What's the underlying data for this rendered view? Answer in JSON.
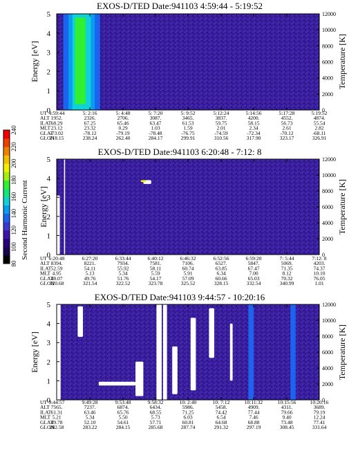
{
  "colorbar": {
    "label": "Second Harmonic Current",
    "ticks": [
      "80",
      "100",
      "120",
      "140",
      "160",
      "180",
      "200",
      "220",
      "240"
    ],
    "colors": [
      "#000000",
      "#1a0050",
      "#2a007a",
      "#3c14a6",
      "#3a3ad0",
      "#1a64f0",
      "#0a9cf0",
      "#10d0d8",
      "#10e87a",
      "#30f030",
      "#a0f010",
      "#f0f000",
      "#f0c000",
      "#f08000",
      "#f04000",
      "#f00000"
    ]
  },
  "chart_data": [
    {
      "type": "heatmap",
      "title": "EXOS-D/TED   Date:941103  4:59:44 - 5:19:52",
      "ylabel": "Energy [eV]",
      "y2label": "Temperature [K]",
      "ylim": [
        0,
        5
      ],
      "y2lim": [
        0,
        12000
      ],
      "yticks": [
        "0",
        "1",
        "2",
        "3",
        "4",
        "5"
      ],
      "y2ticks": [
        "0",
        "2000",
        "4000",
        "6000",
        "8000",
        "10000",
        "12000"
      ],
      "background_color": "#3a1f9e",
      "features": [
        {
          "x_start": 0.025,
          "x_end": 0.165,
          "y_start": 0.0,
          "y_end": 5.0,
          "color": "#1a64f0"
        },
        {
          "x_start": 0.045,
          "x_end": 0.145,
          "y_start": 0.0,
          "y_end": 5.0,
          "color": "#0a9cf0"
        },
        {
          "x_start": 0.06,
          "x_end": 0.13,
          "y_start": 0.0,
          "y_end": 5.0,
          "color": "#10d0d8"
        },
        {
          "x_start": 0.07,
          "x_end": 0.11,
          "y_start": 0.3,
          "y_end": 4.8,
          "color": "#30f030"
        }
      ],
      "rows": [
        {
          "label": "UT",
          "values": [
            "4:59:44",
            "5: 2:16",
            "5: 4:48",
            "5: 7:20",
            "5: 9:52",
            "5:12:24",
            "5:14:56",
            "5:17:28",
            "5:19:52"
          ]
        },
        {
          "label": "ALT",
          "values": [
            "1952.",
            "2326.",
            "2706.",
            "3087.",
            "3465.",
            "3837.",
            "4200.",
            "4552.",
            "4874."
          ]
        },
        {
          "label": "ILAT",
          "values": [
            "68.29",
            "67.25",
            "65.46",
            "63.47",
            "61.53",
            "59.75",
            "58.15",
            "56.73",
            "55.54"
          ]
        },
        {
          "label": "MLT",
          "values": [
            "23.12",
            "23.32",
            "0.29",
            "1.03",
            "1.59",
            "2.01",
            "2.34",
            "2.61",
            "2.82"
          ]
        },
        {
          "label": "GLAT",
          "values": [
            "-73.02",
            "-78.12",
            "-79.19",
            "-78.48",
            "-76.75",
            "-74.59",
            "-72.34",
            "-70.12",
            "-68.11"
          ]
        },
        {
          "label": "GLON",
          "values": [
            "218.15",
            "238.24",
            "262.40",
            "284.17",
            "299.91",
            "310.56",
            "317.90",
            "323.17",
            "326.91"
          ]
        }
      ]
    },
    {
      "type": "heatmap",
      "title": "EXOS-D/TED   Date:941103  6:20:48 - 7:12: 8",
      "ylabel": "Energy [eV]",
      "y2label": "Temperature [K]",
      "ylim": [
        0,
        5
      ],
      "y2lim": [
        0,
        12000
      ],
      "yticks": [
        "0",
        "1",
        "2",
        "3",
        "4",
        "5"
      ],
      "y2ticks": [
        "0",
        "2000",
        "4000",
        "6000",
        "8000",
        "10000",
        "12000"
      ],
      "background_color": "#3a1f9e",
      "features": [
        {
          "x_start": 0.028,
          "x_end": 0.032,
          "y_start": 0.0,
          "y_end": 5.0,
          "color": "#ffffff"
        },
        {
          "x_start": 0.0,
          "x_end": 0.012,
          "y_start": 0.0,
          "y_end": 3.1,
          "color": "#ffffff"
        },
        {
          "x_start": 0.33,
          "x_end": 0.36,
          "y_start": 3.7,
          "y_end": 3.9,
          "color": "#ffffff"
        },
        {
          "x_start": 0.32,
          "x_end": 0.34,
          "y_start": 3.8,
          "y_end": 3.9,
          "color": "#f0f000"
        }
      ],
      "rows": [
        {
          "label": "UT",
          "values": [
            "6:20:48",
            "6:27:20",
            "6:33:44",
            "6:40:12",
            "6:46:32",
            "6:52:56",
            "6:59:20",
            "7: 5:44",
            "7:12: 8"
          ]
        },
        {
          "label": "ALT",
          "values": [
            "8394.",
            "8221.",
            "7934.",
            "7581.",
            "7106.",
            "6527.",
            "5847.",
            "5069.",
            "4203."
          ]
        },
        {
          "label": "ILAT",
          "values": [
            "52.59",
            "54.11",
            "55.92",
            "58.11",
            "60.74",
            "63.85",
            "67.47",
            "71.35",
            "74.37"
          ]
        },
        {
          "label": "MLT",
          "values": [
            "4.95",
            "5.13",
            "5.34",
            "5.59",
            "5.91",
            "6.34",
            "7.00",
            "8.12",
            "10.10"
          ]
        },
        {
          "label": "GLAT",
          "values": [
            "48.07",
            "49.76",
            "51.76",
            "54.17",
            "57.09",
            "60.66",
            "65.03",
            "70.32",
            "76.05"
          ]
        },
        {
          "label": "GLON",
          "values": [
            "320.68",
            "321.54",
            "322.52",
            "323.78",
            "325.52",
            "328.15",
            "332.54",
            "340.99",
            "1.01"
          ]
        }
      ]
    },
    {
      "type": "heatmap",
      "title": "EXOS-D/TED   Date:941103  9:44:57 - 10:20:16",
      "ylabel": "Energy [eV]",
      "y2label": "Temperature [K]",
      "ylim": [
        0,
        5
      ],
      "y2lim": [
        0,
        12000
      ],
      "yticks": [
        "0",
        "1",
        "2",
        "3",
        "4",
        "5"
      ],
      "y2ticks": [
        "0",
        "2000",
        "4000",
        "6000",
        "8000",
        "10000",
        "12000"
      ],
      "background_color": "#3a1f9e",
      "features": [
        {
          "x_start": 0.0,
          "x_end": 0.015,
          "y_start": 0.0,
          "y_end": 5.0,
          "color": "#ffffff"
        },
        {
          "x_start": 0.38,
          "x_end": 0.4,
          "y_start": 0.0,
          "y_end": 5.0,
          "color": "#ffffff"
        },
        {
          "x_start": 0.405,
          "x_end": 0.42,
          "y_start": 0.0,
          "y_end": 5.0,
          "color": "#ffffff"
        },
        {
          "x_start": 0.16,
          "x_end": 0.3,
          "y_start": 0.75,
          "y_end": 0.95,
          "color": "#ffffff"
        },
        {
          "x_start": 0.3,
          "x_end": 0.33,
          "y_start": 0.2,
          "y_end": 2.0,
          "color": "#ffffff"
        },
        {
          "x_start": 0.51,
          "x_end": 0.53,
          "y_start": 0.5,
          "y_end": 4.3,
          "color": "#ffffff"
        },
        {
          "x_start": 0.44,
          "x_end": 0.46,
          "y_start": 0.3,
          "y_end": 2.8,
          "color": "#ffffff"
        },
        {
          "x_start": 0.58,
          "x_end": 0.6,
          "y_start": 2.2,
          "y_end": 4.8,
          "color": "#ffffff"
        },
        {
          "x_start": 0.66,
          "x_end": 0.67,
          "y_start": 1.0,
          "y_end": 4.0,
          "color": "#ffffff"
        },
        {
          "x_start": 0.73,
          "x_end": 0.75,
          "y_start": 0.0,
          "y_end": 5.0,
          "color": "#1a64f0"
        },
        {
          "x_start": 0.89,
          "x_end": 0.91,
          "y_start": 0.0,
          "y_end": 5.0,
          "color": "#1a64f0"
        },
        {
          "x_start": 0.08,
          "x_end": 0.1,
          "y_start": 3.3,
          "y_end": 4.9,
          "color": "#ffffff"
        }
      ],
      "rows": [
        {
          "label": "UT",
          "values": [
            "9:44:57",
            "9:49:28",
            "9:53:48",
            "9:58:32",
            "10: 2:40",
            "10: 7:12",
            "10:11:32",
            "10:15:56",
            "10:20:16"
          ]
        },
        {
          "label": "ALT",
          "values": [
            "7565.",
            "7237.",
            "6874.",
            "6434.",
            "5986.",
            "5458.",
            "4909.",
            "4311.",
            "3689."
          ]
        },
        {
          "label": "ILAT",
          "values": [
            "61.31",
            "63.46",
            "65.76",
            "68.55",
            "71.25",
            "74.42",
            "77.44",
            "79.66",
            "79.19"
          ]
        },
        {
          "label": "MLT",
          "values": [
            "5.21",
            "5.34",
            "5.50",
            "5.73",
            "6.03",
            "6.54",
            "7.46",
            "9.40",
            "12.24"
          ]
        },
        {
          "label": "GLAT",
          "values": [
            "49.78",
            "52.10",
            "54.61",
            "57.71",
            "60.81",
            "64.68",
            "68.88",
            "73.48",
            "77.41"
          ]
        },
        {
          "label": "GLON",
          "values": [
            "282.58",
            "283.22",
            "284.15",
            "285.68",
            "287.74",
            "291.32",
            "297.19",
            "308.45",
            "331.64"
          ]
        }
      ]
    }
  ]
}
